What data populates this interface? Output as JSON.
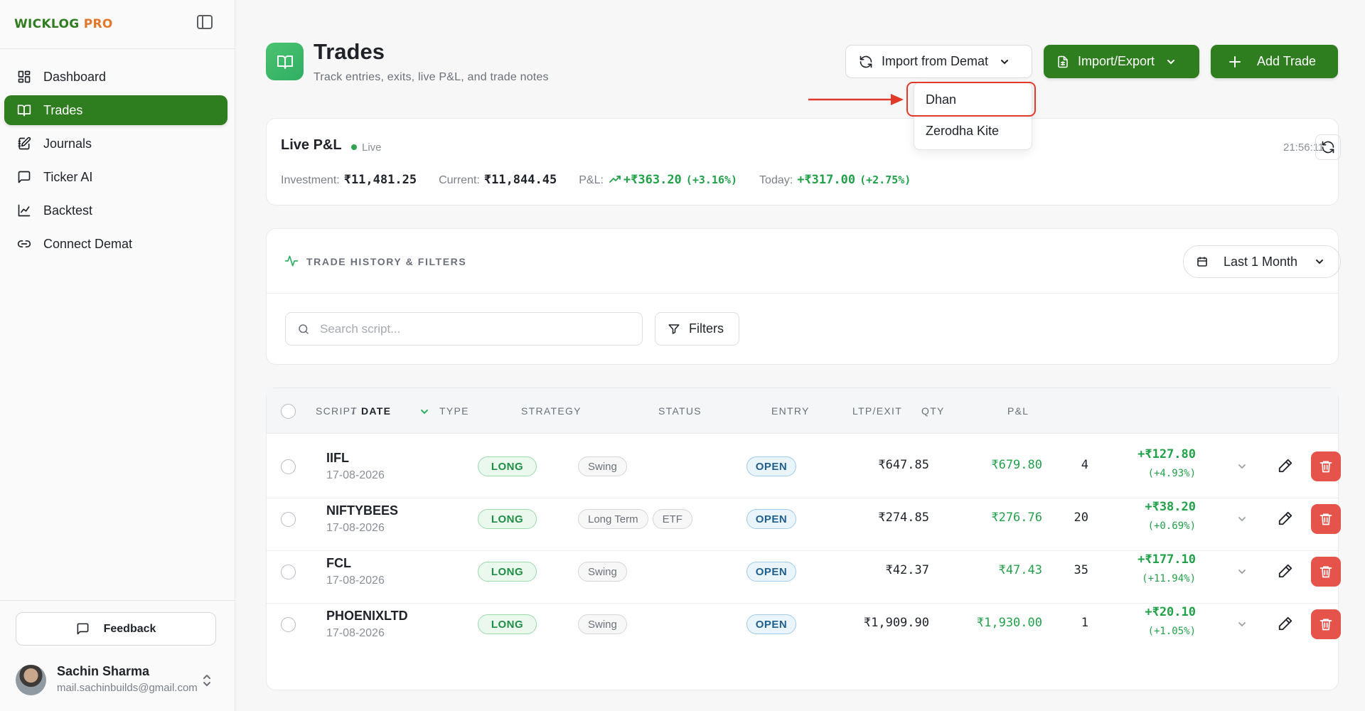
{
  "brand": {
    "part1": "WICKLOG",
    "part2": "PRO"
  },
  "sidebar": {
    "items": [
      {
        "label": "Dashboard",
        "icon": "dashboard-icon",
        "active": false
      },
      {
        "label": "Trades",
        "icon": "book-icon",
        "active": true
      },
      {
        "label": "Journals",
        "icon": "notebook-icon",
        "active": false
      },
      {
        "label": "Ticker AI",
        "icon": "chat-icon",
        "active": false
      },
      {
        "label": "Backtest",
        "icon": "chart-line-icon",
        "active": false
      },
      {
        "label": "Connect Demat",
        "icon": "link-icon",
        "active": false
      }
    ],
    "feedback_label": "Feedback",
    "user": {
      "name": "Sachin Sharma",
      "email": "mail.sachinbuilds@gmail.com"
    }
  },
  "header": {
    "title": "Trades",
    "subtitle": "Track entries, exits, live P&L, and trade notes",
    "import_demat_label": "Import from Demat",
    "import_export_label": "Import/Export",
    "add_trade_label": "Add Trade"
  },
  "demat_dropdown": {
    "options": [
      "Dhan",
      "Zerodha Kite"
    ],
    "highlighted": "Dhan"
  },
  "live_pnl": {
    "title": "Live P&L",
    "badge": "Live",
    "time": "21:56:11",
    "investment_label": "Investment:",
    "investment": "₹11,481.25",
    "current_label": "Current:",
    "current": "₹11,844.45",
    "pnl_label": "P&L:",
    "pnl": "+₹363.20",
    "pnl_pct": "(+3.16%)",
    "today_label": "Today:",
    "today": "+₹317.00",
    "today_pct": "(+2.75%)"
  },
  "filters": {
    "title": "TRADE HISTORY & FILTERS",
    "period": "Last 1 Month",
    "search_placeholder": "Search script...",
    "filters_label": "Filters"
  },
  "table": {
    "columns": {
      "script": "SCRIPT",
      "sep": "/",
      "date": "DATE",
      "type": "TYPE",
      "strategy": "STRATEGY",
      "status": "STATUS",
      "entry": "ENTRY",
      "ltp": "LTP/EXIT",
      "qty": "QTY",
      "pnl": "P&L"
    },
    "rows": [
      {
        "script": "IIFL",
        "date": "17-08-2026",
        "type": "LONG",
        "strategy": [
          "Swing"
        ],
        "status": "OPEN",
        "entry": "₹647.85",
        "ltp": "₹679.80",
        "qty": "4",
        "pnl": "+₹127.80",
        "pnl_pct": "(+4.93%)"
      },
      {
        "script": "NIFTYBEES",
        "date": "17-08-2026",
        "type": "LONG",
        "strategy": [
          "Long Term",
          "ETF"
        ],
        "status": "OPEN",
        "entry": "₹274.85",
        "ltp": "₹276.76",
        "qty": "20",
        "pnl": "+₹38.20",
        "pnl_pct": "(+0.69%)"
      },
      {
        "script": "FCL",
        "date": "17-08-2026",
        "type": "LONG",
        "strategy": [
          "Swing"
        ],
        "status": "OPEN",
        "entry": "₹42.37",
        "ltp": "₹47.43",
        "qty": "35",
        "pnl": "+₹177.10",
        "pnl_pct": "(+11.94%)"
      },
      {
        "script": "PHOENIXLTD",
        "date": "17-08-2026",
        "type": "LONG",
        "strategy": [
          "Swing"
        ],
        "status": "OPEN",
        "entry": "₹1,909.90",
        "ltp": "₹1,930.00",
        "qty": "1",
        "pnl": "+₹20.10",
        "pnl_pct": "(+1.05%)"
      }
    ]
  },
  "colors": {
    "brand_green": "#2e7d1e",
    "brand_orange": "#e1782b",
    "profit_green": "#23a14a",
    "delete_red": "#e5534b",
    "highlight_red": "#e23a2a"
  }
}
